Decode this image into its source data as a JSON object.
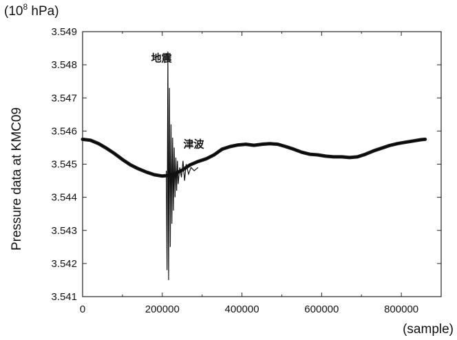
{
  "chart_data": {
    "type": "line",
    "unit_label": "(10",
    "unit_exponent": "8",
    "unit_suffix": " hPa)",
    "xlabel": "(sample)",
    "ylabel": "Pressure data at KMC09",
    "xlim": [
      0,
      900000
    ],
    "ylim": [
      3.541,
      3.549
    ],
    "x_ticks": [
      0,
      200000,
      400000,
      600000,
      800000
    ],
    "x_tick_labels": [
      "0",
      "200000",
      "400000",
      "600000",
      "800000"
    ],
    "y_ticks": [
      3.541,
      3.542,
      3.543,
      3.544,
      3.545,
      3.546,
      3.547,
      3.548,
      3.549
    ],
    "y_tick_labels": [
      "3.541",
      "3.542",
      "3.543",
      "3.544",
      "3.545",
      "3.546",
      "3.547",
      "3.548",
      "3.549"
    ],
    "grid": false,
    "annotations": [
      {
        "text": "地震",
        "x": 172000,
        "y": 3.5481
      },
      {
        "text": "津波",
        "x": 253000,
        "y": 3.5455
      }
    ],
    "series": [
      {
        "x": [
          0,
          20000,
          40000,
          60000,
          80000,
          100000,
          120000,
          140000,
          160000,
          180000,
          200000,
          210000,
          230000,
          250000,
          270000,
          290000,
          310000,
          330000,
          350000,
          370000,
          390000,
          410000,
          430000,
          450000,
          470000,
          490000,
          510000,
          530000,
          550000,
          570000,
          590000,
          610000,
          630000,
          650000,
          670000,
          690000,
          710000,
          730000,
          750000,
          770000,
          790000,
          810000,
          830000,
          850000,
          860000
        ],
        "y": [
          3.54575,
          3.54572,
          3.54562,
          3.54548,
          3.54532,
          3.54514,
          3.54498,
          3.54486,
          3.54476,
          3.54468,
          3.54464,
          3.54465,
          3.5447,
          3.54482,
          3.54498,
          3.54508,
          3.54516,
          3.54528,
          3.54545,
          3.54553,
          3.54558,
          3.5456,
          3.54557,
          3.5456,
          3.54562,
          3.5456,
          3.54553,
          3.54545,
          3.54536,
          3.5453,
          3.54528,
          3.54524,
          3.54522,
          3.54522,
          3.5452,
          3.54522,
          3.5453,
          3.5454,
          3.54548,
          3.54556,
          3.54562,
          3.54566,
          3.5457,
          3.54574,
          3.54575
        ]
      }
    ],
    "oscillation": {
      "x": [
        210000,
        212000,
        214000,
        216000,
        218000,
        220000,
        222000,
        224000,
        226000,
        228000,
        230000,
        232000,
        234000,
        236000,
        238000,
        240000,
        244000,
        248000,
        252000,
        256000,
        260000,
        266000,
        272000,
        280000,
        290000
      ],
      "y": [
        3.5448,
        3.5418,
        3.5484,
        3.5415,
        3.5473,
        3.5425,
        3.5462,
        3.5432,
        3.5458,
        3.5436,
        3.5455,
        3.544,
        3.5452,
        3.5442,
        3.5451,
        3.5444,
        3.5449,
        3.5446,
        3.5451,
        3.5445,
        3.545,
        3.5447,
        3.5449,
        3.5448,
        3.5449
      ]
    }
  }
}
